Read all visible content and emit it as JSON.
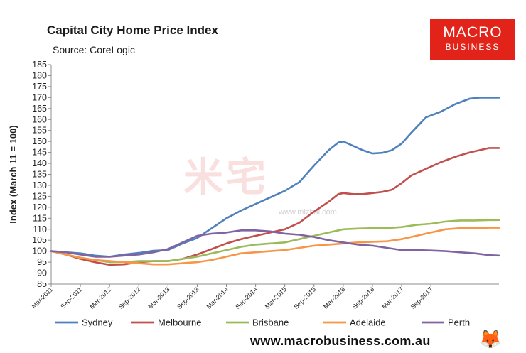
{
  "header": {
    "title": "Capital City Home Price Index",
    "subtitle": "Source: CoreLogic"
  },
  "logo": {
    "line1": "MACRO",
    "line2": "BUSINESS"
  },
  "watermark": {
    "text": "米宅",
    "url": "www.mizhai.com"
  },
  "footer": {
    "url": "www.macrobusiness.com.au"
  },
  "colors": {
    "sydney": "#4f81bd",
    "melbourne": "#c0504d",
    "brisbane": "#9bbb59",
    "adelaide": "#f79646",
    "perth": "#8064a2",
    "logo_bg": "#e2231a"
  },
  "chart_data": {
    "type": "line",
    "title": "Capital City Home Price Index",
    "subtitle": "Source: CoreLogic",
    "xlabel": "",
    "ylabel": "Index (March 11 = 100)",
    "ylim": [
      85,
      185
    ],
    "yticks": [
      85,
      90,
      95,
      100,
      105,
      110,
      115,
      120,
      125,
      130,
      135,
      140,
      145,
      150,
      155,
      160,
      165,
      170,
      175,
      180,
      185
    ],
    "x_start": "Mar-2011",
    "x_tick_labels": [
      "Mar-2011",
      "Sep-2011",
      "Mar-2012",
      "Sep-2012",
      "Mar-2013",
      "Sep-2013",
      "Mar-2014",
      "Sep-2014",
      "Mar-2015",
      "Sep-2015",
      "Mar-2016",
      "Sep-2016",
      "Mar-2017",
      "Sep-2017"
    ],
    "x_tick_months": [
      0,
      6,
      12,
      18,
      24,
      30,
      36,
      42,
      48,
      54,
      60,
      66,
      72,
      78
    ],
    "legend_position": "bottom",
    "series": [
      {
        "name": "Sydney",
        "color": "#4f81bd",
        "points": [
          [
            0,
            100
          ],
          [
            3,
            99.5
          ],
          [
            6,
            99
          ],
          [
            9,
            98
          ],
          [
            12,
            97.5
          ],
          [
            15,
            98.5
          ],
          [
            18,
            99.2
          ],
          [
            21,
            100.2
          ],
          [
            24,
            100.5
          ],
          [
            27,
            103.5
          ],
          [
            30,
            106
          ],
          [
            33,
            110.5
          ],
          [
            36,
            115
          ],
          [
            39,
            118.5
          ],
          [
            42,
            121.5
          ],
          [
            45,
            124.5
          ],
          [
            48,
            127.5
          ],
          [
            51,
            131.5
          ],
          [
            54,
            139
          ],
          [
            57,
            146
          ],
          [
            59,
            149.5
          ],
          [
            60,
            150
          ],
          [
            62,
            148
          ],
          [
            64,
            146
          ],
          [
            66,
            144.5
          ],
          [
            68,
            144.8
          ],
          [
            70,
            146
          ],
          [
            72,
            149
          ],
          [
            74,
            154
          ],
          [
            77,
            161
          ],
          [
            80,
            163.5
          ],
          [
            83,
            167
          ],
          [
            86,
            169.5
          ],
          [
            88,
            170
          ],
          [
            90,
            170
          ],
          [
            92,
            170
          ]
        ]
      },
      {
        "name": "Melbourne",
        "color": "#c0504d",
        "points": [
          [
            0,
            100
          ],
          [
            3,
            98.5
          ],
          [
            6,
            96.5
          ],
          [
            9,
            95
          ],
          [
            12,
            93.8
          ],
          [
            15,
            94
          ],
          [
            18,
            95
          ],
          [
            21,
            95.5
          ],
          [
            24,
            95.5
          ],
          [
            27,
            96.5
          ],
          [
            30,
            98.5
          ],
          [
            33,
            101
          ],
          [
            36,
            103.5
          ],
          [
            39,
            105.5
          ],
          [
            42,
            107
          ],
          [
            45,
            108.5
          ],
          [
            48,
            110
          ],
          [
            51,
            113
          ],
          [
            54,
            118
          ],
          [
            57,
            122.5
          ],
          [
            59,
            126
          ],
          [
            60,
            126.5
          ],
          [
            62,
            126
          ],
          [
            64,
            126
          ],
          [
            66,
            126.5
          ],
          [
            68,
            127
          ],
          [
            70,
            128
          ],
          [
            72,
            131
          ],
          [
            74,
            134.5
          ],
          [
            77,
            137.5
          ],
          [
            80,
            140.5
          ],
          [
            83,
            143
          ],
          [
            86,
            145
          ],
          [
            88,
            146
          ],
          [
            90,
            147
          ],
          [
            92,
            147
          ]
        ]
      },
      {
        "name": "Brisbane",
        "color": "#9bbb59",
        "points": [
          [
            0,
            100
          ],
          [
            3,
            98.5
          ],
          [
            6,
            97
          ],
          [
            9,
            96
          ],
          [
            12,
            95
          ],
          [
            15,
            95
          ],
          [
            18,
            95.5
          ],
          [
            21,
            95.5
          ],
          [
            24,
            95.5
          ],
          [
            27,
            96.5
          ],
          [
            30,
            97.5
          ],
          [
            33,
            99
          ],
          [
            36,
            100.5
          ],
          [
            39,
            102
          ],
          [
            42,
            103
          ],
          [
            45,
            103.5
          ],
          [
            48,
            104
          ],
          [
            51,
            105.5
          ],
          [
            54,
            107
          ],
          [
            57,
            108.5
          ],
          [
            60,
            110
          ],
          [
            63,
            110.3
          ],
          [
            66,
            110.5
          ],
          [
            69,
            110.5
          ],
          [
            72,
            111
          ],
          [
            75,
            112
          ],
          [
            78,
            112.5
          ],
          [
            81,
            113.5
          ],
          [
            84,
            114
          ],
          [
            87,
            114
          ],
          [
            90,
            114.2
          ],
          [
            92,
            114.2
          ]
        ]
      },
      {
        "name": "Adelaide",
        "color": "#f79646",
        "points": [
          [
            0,
            100
          ],
          [
            3,
            98.5
          ],
          [
            6,
            97
          ],
          [
            9,
            96
          ],
          [
            12,
            95.5
          ],
          [
            15,
            95
          ],
          [
            18,
            94.5
          ],
          [
            21,
            94
          ],
          [
            24,
            94
          ],
          [
            27,
            94.5
          ],
          [
            30,
            95
          ],
          [
            33,
            96
          ],
          [
            36,
            97.5
          ],
          [
            39,
            99
          ],
          [
            42,
            99.5
          ],
          [
            45,
            100
          ],
          [
            48,
            100.5
          ],
          [
            51,
            101.5
          ],
          [
            54,
            102.5
          ],
          [
            57,
            103
          ],
          [
            60,
            103.5
          ],
          [
            63,
            104
          ],
          [
            66,
            104.3
          ],
          [
            69,
            104.5
          ],
          [
            72,
            105.5
          ],
          [
            75,
            107
          ],
          [
            78,
            108.5
          ],
          [
            81,
            110
          ],
          [
            84,
            110.5
          ],
          [
            87,
            110.5
          ],
          [
            90,
            110.7
          ],
          [
            92,
            110.7
          ]
        ]
      },
      {
        "name": "Perth",
        "color": "#8064a2",
        "points": [
          [
            0,
            100
          ],
          [
            3,
            99.5
          ],
          [
            6,
            98.5
          ],
          [
            9,
            97.5
          ],
          [
            12,
            97.5
          ],
          [
            15,
            98
          ],
          [
            18,
            98.5
          ],
          [
            21,
            99.5
          ],
          [
            24,
            101
          ],
          [
            27,
            104
          ],
          [
            30,
            107
          ],
          [
            33,
            108
          ],
          [
            36,
            108.5
          ],
          [
            39,
            109.5
          ],
          [
            42,
            109.5
          ],
          [
            45,
            109
          ],
          [
            48,
            108
          ],
          [
            51,
            107.5
          ],
          [
            54,
            106.5
          ],
          [
            57,
            105
          ],
          [
            60,
            104
          ],
          [
            63,
            103
          ],
          [
            66,
            102.5
          ],
          [
            69,
            101.5
          ],
          [
            72,
            100.5
          ],
          [
            75,
            100.5
          ],
          [
            78,
            100.3
          ],
          [
            81,
            100
          ],
          [
            84,
            99.5
          ],
          [
            87,
            99
          ],
          [
            90,
            98.2
          ],
          [
            92,
            98
          ]
        ]
      }
    ]
  }
}
